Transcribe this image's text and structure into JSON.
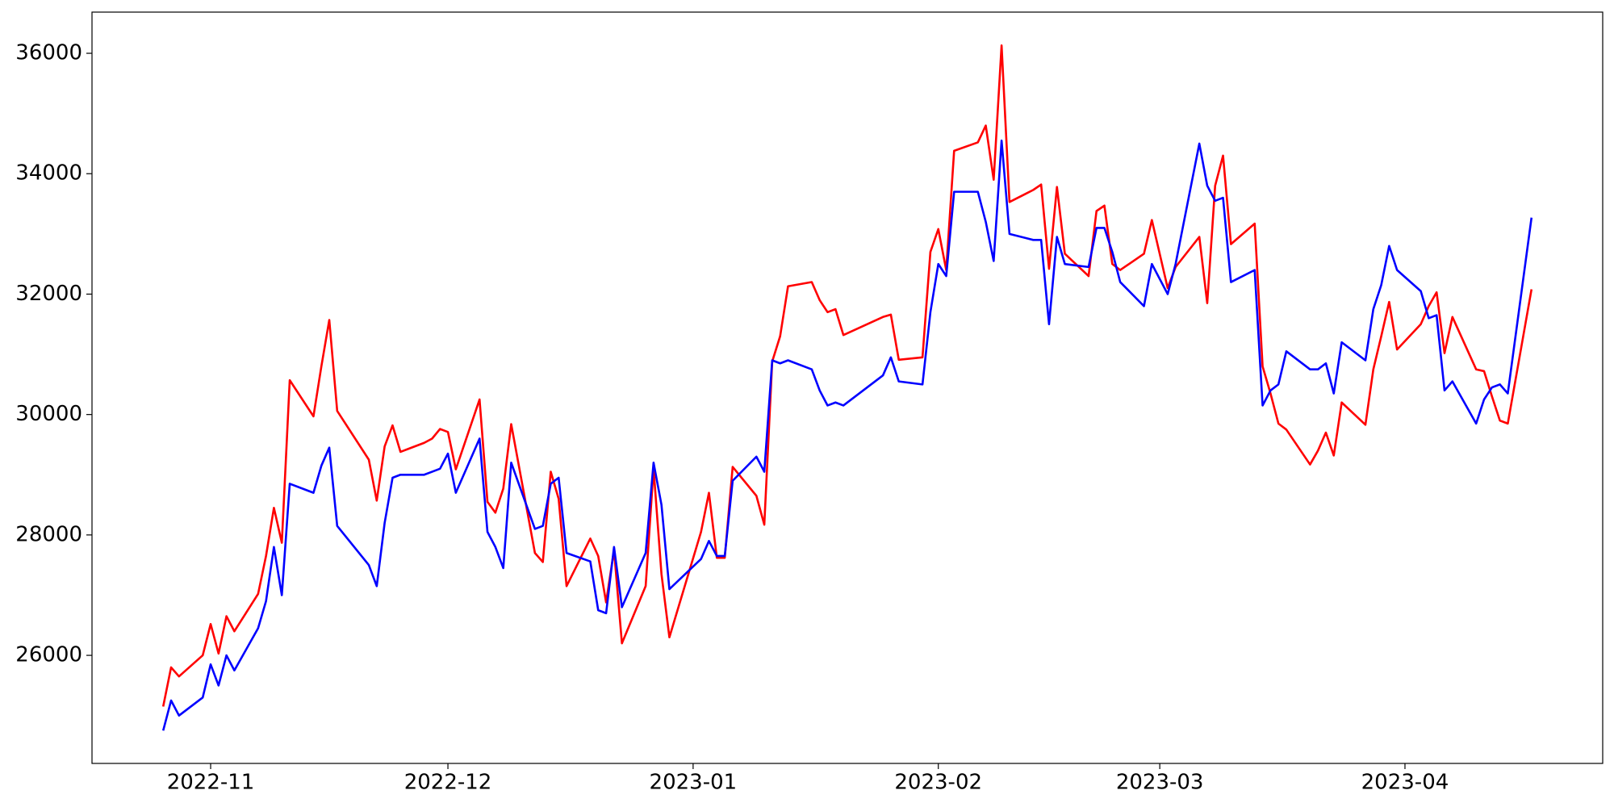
{
  "chart_data": {
    "type": "line",
    "x": [
      "2022-10-26",
      "2022-10-27",
      "2022-10-28",
      "2022-10-31",
      "2022-11-01",
      "2022-11-02",
      "2022-11-03",
      "2022-11-04",
      "2022-11-07",
      "2022-11-08",
      "2022-11-09",
      "2022-11-10",
      "2022-11-11",
      "2022-11-14",
      "2022-11-15",
      "2022-11-16",
      "2022-11-17",
      "2022-11-21",
      "2022-11-22",
      "2022-11-23",
      "2022-11-24",
      "2022-11-25",
      "2022-11-28",
      "2022-11-29",
      "2022-11-30",
      "2022-12-01",
      "2022-12-02",
      "2022-12-05",
      "2022-12-06",
      "2022-12-07",
      "2022-12-08",
      "2022-12-09",
      "2022-12-12",
      "2022-12-13",
      "2022-12-14",
      "2022-12-15",
      "2022-12-16",
      "2022-12-19",
      "2022-12-20",
      "2022-12-21",
      "2022-12-22",
      "2022-12-23",
      "2022-12-26",
      "2022-12-27",
      "2022-12-28",
      "2022-12-29",
      "2023-01-02",
      "2023-01-03",
      "2023-01-04",
      "2023-01-05",
      "2023-01-06",
      "2023-01-09",
      "2023-01-10",
      "2023-01-11",
      "2023-01-12",
      "2023-01-13",
      "2023-01-16",
      "2023-01-17",
      "2023-01-18",
      "2023-01-19",
      "2023-01-20",
      "2023-01-25",
      "2023-01-26",
      "2023-01-27",
      "2023-01-30",
      "2023-01-31",
      "2023-02-01",
      "2023-02-02",
      "2023-02-03",
      "2023-02-06",
      "2023-02-07",
      "2023-02-08",
      "2023-02-09",
      "2023-02-10",
      "2023-02-13",
      "2023-02-14",
      "2023-02-15",
      "2023-02-16",
      "2023-02-17",
      "2023-02-20",
      "2023-02-21",
      "2023-02-22",
      "2023-02-23",
      "2023-02-24",
      "2023-02-27",
      "2023-02-28",
      "2023-03-02",
      "2023-03-03",
      "2023-03-06",
      "2023-03-07",
      "2023-03-08",
      "2023-03-09",
      "2023-03-10",
      "2023-03-13",
      "2023-03-14",
      "2023-03-15",
      "2023-03-16",
      "2023-03-17",
      "2023-03-20",
      "2023-03-21",
      "2023-03-22",
      "2023-03-23",
      "2023-03-24",
      "2023-03-27",
      "2023-03-28",
      "2023-03-29",
      "2023-03-30",
      "2023-03-31",
      "2023-04-03",
      "2023-04-04",
      "2023-04-05",
      "2023-04-06",
      "2023-04-07",
      "2023-04-10",
      "2023-04-11",
      "2023-04-12",
      "2023-04-13",
      "2023-04-14",
      "2023-04-17"
    ],
    "series": [
      {
        "color": "#ff0000",
        "values": [
          25150,
          25800,
          25650,
          26000,
          26520,
          26030,
          26650,
          26400,
          27020,
          27650,
          28450,
          27870,
          30570,
          29970,
          30800,
          31570,
          30060,
          29250,
          28570,
          29470,
          29820,
          29380,
          29530,
          29600,
          29760,
          29710,
          29090,
          30250,
          28550,
          28370,
          28770,
          29840,
          27700,
          27550,
          29050,
          28600,
          27150,
          27940,
          27650,
          26880,
          27750,
          26200,
          27150,
          29100,
          27350,
          26300,
          28050,
          28700,
          27620,
          27620,
          29130,
          28650,
          28170,
          30880,
          31300,
          32130,
          32200,
          31900,
          31700,
          31750,
          31320,
          31620,
          31660,
          30910,
          30950,
          32700,
          33080,
          32400,
          34380,
          34520,
          34800,
          33900,
          36130,
          33530,
          33730,
          33820,
          32420,
          33780,
          32670,
          32300,
          33380,
          33470,
          32500,
          32400,
          32670,
          33230,
          32100,
          32450,
          32950,
          31850,
          33800,
          34300,
          32830,
          33170,
          30800,
          30350,
          29850,
          29750,
          29170,
          29400,
          29700,
          29320,
          30200,
          29830,
          30750,
          31300,
          31870,
          31080,
          31500,
          31800,
          32030,
          31020,
          31620,
          30750,
          30720,
          30300,
          29900,
          29850,
          32080
        ]
      },
      {
        "color": "#0000ff",
        "values": [
          24750,
          25250,
          25000,
          25300,
          25850,
          25500,
          26000,
          25750,
          26450,
          26900,
          27800,
          27000,
          28850,
          28700,
          29150,
          29450,
          28150,
          27500,
          27150,
          28200,
          28950,
          29000,
          29000,
          29050,
          29100,
          29350,
          28700,
          29600,
          28050,
          27800,
          27450,
          29200,
          28100,
          28150,
          28850,
          28950,
          27700,
          27560,
          26750,
          26700,
          27800,
          26800,
          27700,
          29200,
          28500,
          27100,
          27600,
          27900,
          27650,
          27650,
          28900,
          29300,
          29050,
          30900,
          30850,
          30900,
          30750,
          30400,
          30150,
          30200,
          30150,
          30650,
          30950,
          30550,
          30500,
          31700,
          32500,
          32300,
          33700,
          33700,
          33200,
          32550,
          34550,
          33000,
          32900,
          32900,
          31500,
          32950,
          32500,
          32450,
          33100,
          33100,
          32700,
          32200,
          31800,
          32500,
          32000,
          32500,
          34500,
          33800,
          33550,
          33600,
          32200,
          32400,
          30150,
          30400,
          30500,
          31050,
          30750,
          30750,
          30850,
          30350,
          31200,
          30900,
          31750,
          32150,
          32800,
          32400,
          32050,
          31600,
          31650,
          30400,
          30550,
          29850,
          30250,
          30450,
          30500,
          30350,
          33270
        ]
      }
    ],
    "xlim": [
      "2022-10-17",
      "2023-04-26"
    ],
    "xticks": [
      {
        "value": "2022-11-01",
        "label": "2022-11"
      },
      {
        "value": "2022-12-01",
        "label": "2022-12"
      },
      {
        "value": "2023-01-01",
        "label": "2023-01"
      },
      {
        "value": "2023-02-01",
        "label": "2023-02"
      },
      {
        "value": "2023-03-01",
        "label": "2023-03"
      },
      {
        "value": "2023-04-01",
        "label": "2023-04"
      }
    ],
    "ylim": [
      24205,
      36684
    ],
    "yticks": [
      26000,
      28000,
      30000,
      32000,
      34000,
      36000
    ],
    "grid": false
  }
}
